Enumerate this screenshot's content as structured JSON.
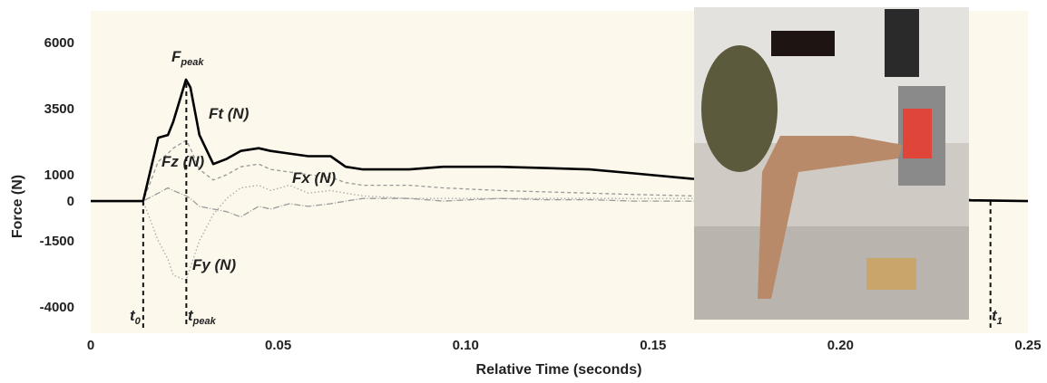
{
  "chart_data": {
    "type": "line",
    "xlabel": "Relative Time (seconds)",
    "ylabel": "Force (N)",
    "x": [
      0,
      0.014,
      0.018,
      0.0206,
      0.022,
      0.0254,
      0.0266,
      0.029,
      0.0327,
      0.0363,
      0.04,
      0.0448,
      0.048,
      0.053,
      0.058,
      0.064,
      0.068,
      0.0726,
      0.085,
      0.094,
      0.109,
      0.121,
      0.133,
      0.145,
      0.16,
      0.235,
      0.25
    ],
    "series": [
      {
        "name": "Ft (N)",
        "color": "#000000",
        "line_style": "solid",
        "values": [
          0,
          0,
          2400,
          2500,
          3000,
          4600,
          4300,
          2500,
          1400,
          1600,
          1900,
          2000,
          1900,
          1800,
          1700,
          1700,
          1300,
          1200,
          1200,
          1300,
          1300,
          1250,
          1200,
          1050,
          850,
          30,
          0
        ]
      },
      {
        "name": "Fz (N)",
        "color": "#999999",
        "line_style": "dashed",
        "values": [
          0,
          0,
          1500,
          1800,
          2000,
          2300,
          2000,
          1200,
          800,
          1000,
          1300,
          1400,
          1200,
          1100,
          1000,
          900,
          700,
          600,
          600,
          500,
          400,
          350,
          300,
          250,
          200,
          0,
          0
        ]
      },
      {
        "name": "Fx (N)",
        "color": "#999999",
        "line_style": "dashdot",
        "values": [
          0,
          0,
          300,
          500,
          400,
          200,
          100,
          -200,
          -300,
          -400,
          -600,
          -200,
          -300,
          -100,
          -200,
          -100,
          0,
          100,
          100,
          0,
          100,
          50,
          50,
          0,
          0,
          0,
          0
        ]
      },
      {
        "name": "Fy (N)",
        "color": "#aaaaaa",
        "line_style": "dotted",
        "values": [
          0,
          0,
          -1500,
          -2200,
          -2800,
          -3000,
          -2500,
          -1500,
          -500,
          100,
          500,
          600,
          400,
          600,
          300,
          400,
          300,
          200,
          100,
          100,
          100,
          100,
          100,
          100,
          100,
          0,
          0
        ]
      }
    ],
    "peak_label": {
      "text": "F",
      "sub": "peak"
    },
    "markers": [
      {
        "x": 0.014,
        "text": "t",
        "sub": "0"
      },
      {
        "x": 0.0255,
        "text": "t",
        "sub": "peak"
      },
      {
        "x": 0.24,
        "text": "t",
        "sub": "1"
      }
    ],
    "xlim": [
      0,
      0.25
    ],
    "xticks": [
      0,
      0.05,
      {
        "value": 0.1,
        "label": "0.10"
      },
      0.15,
      {
        "value": 0.2,
        "label": "0.20"
      },
      0.25
    ],
    "ylim": [
      -5000,
      7200
    ],
    "yticks": [
      -4000,
      -1500,
      0,
      1000,
      3500,
      6000
    ],
    "grid": false
  }
}
